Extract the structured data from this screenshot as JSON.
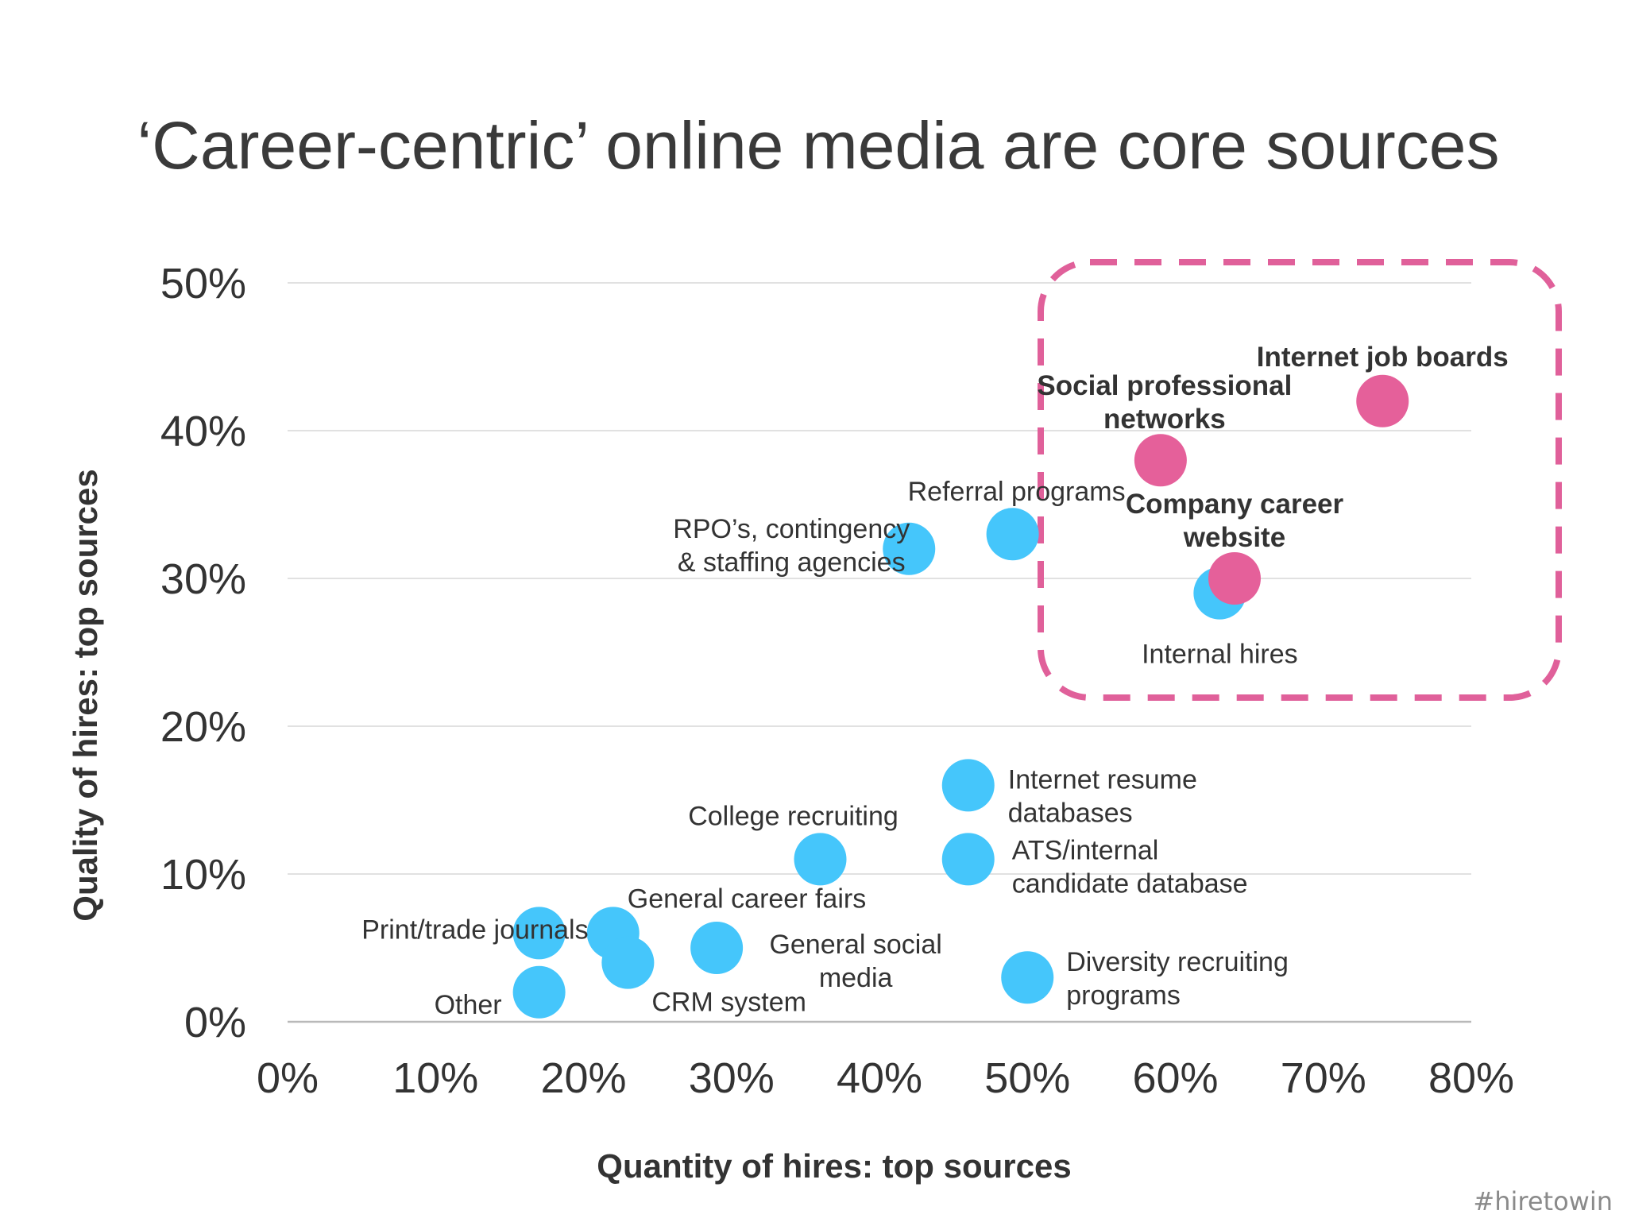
{
  "chart_data": {
    "type": "scatter",
    "title": "‘Career-centric’ online media are core sources",
    "xlabel": "Quantity of hires: top sources",
    "ylabel": "Quality of hires: top sources",
    "xlim": [
      0,
      80
    ],
    "ylim": [
      0,
      50
    ],
    "x_ticks": [
      "0%",
      "10%",
      "20%",
      "30%",
      "40%",
      "50%",
      "60%",
      "70%",
      "80%"
    ],
    "y_ticks": [
      "0%",
      "10%",
      "20%",
      "30%",
      "40%",
      "50%"
    ],
    "grid": "horizontal",
    "highlight_region": "dashed-box-top-right",
    "colors": {
      "standard": "#45c6fb",
      "highlight": "#e5609a",
      "box": "#e0609a"
    },
    "points": [
      {
        "label": [
          "Other"
        ],
        "x": 17,
        "y": 2,
        "group": "standard"
      },
      {
        "label": [
          "Print/trade journals"
        ],
        "x": 17,
        "y": 6,
        "group": "standard"
      },
      {
        "label": [
          "General career fairs"
        ],
        "x": 22,
        "y": 6,
        "group": "standard"
      },
      {
        "label": [
          "CRM system"
        ],
        "x": 23,
        "y": 4,
        "group": "standard"
      },
      {
        "label": [
          "General social",
          "media"
        ],
        "x": 29,
        "y": 5,
        "group": "standard"
      },
      {
        "label": [
          "College recruiting"
        ],
        "x": 36,
        "y": 11,
        "group": "standard"
      },
      {
        "label": [
          "Internet resume",
          "databases"
        ],
        "x": 46,
        "y": 16,
        "group": "standard"
      },
      {
        "label": [
          "ATS/internal",
          "candidate database"
        ],
        "x": 46,
        "y": 11,
        "group": "standard"
      },
      {
        "label": [
          "Diversity recruiting",
          "programs"
        ],
        "x": 50,
        "y": 3,
        "group": "standard"
      },
      {
        "label": [
          "RPO’s, contingency",
          "& staffing agencies"
        ],
        "x": 42,
        "y": 32,
        "group": "standard"
      },
      {
        "label": [
          "Referral programs"
        ],
        "x": 49,
        "y": 33,
        "group": "standard"
      },
      {
        "label": [
          "Internal hires"
        ],
        "x": 63,
        "y": 29,
        "group": "standard"
      },
      {
        "label": [
          "Social professional",
          "networks"
        ],
        "x": 59,
        "y": 38,
        "group": "highlight"
      },
      {
        "label": [
          "Internet job boards"
        ],
        "x": 74,
        "y": 42,
        "group": "highlight"
      },
      {
        "label": [
          "Company career",
          "website"
        ],
        "x": 64,
        "y": 30,
        "group": "highlight"
      }
    ]
  },
  "footer": {
    "hashtag": "#hiretowin"
  }
}
